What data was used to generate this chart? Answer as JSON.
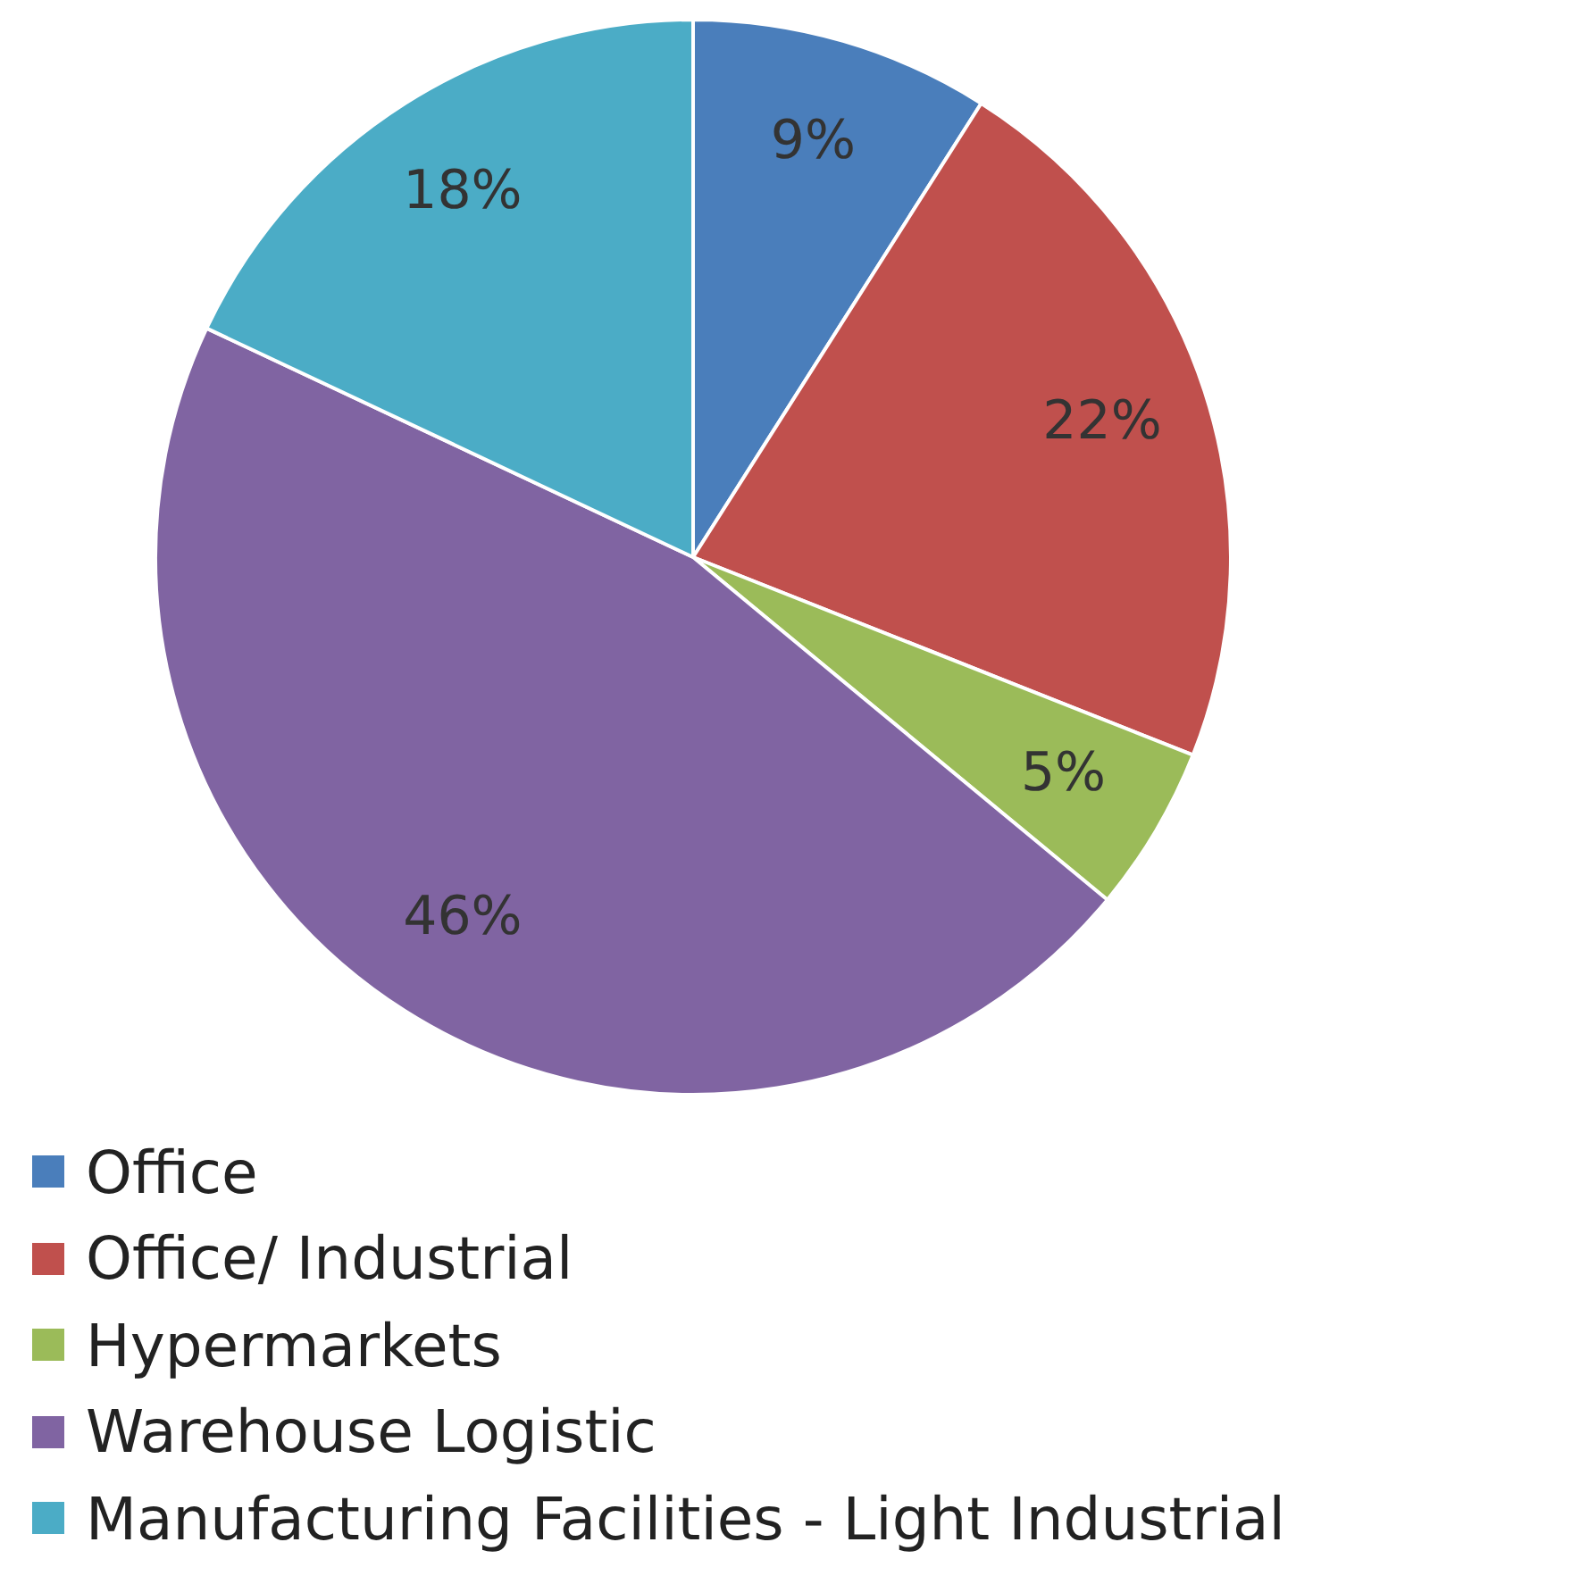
{
  "chart_data": {
    "type": "pie",
    "categories": [
      "Office",
      "Office/ Industrial",
      "Hypermarkets",
      "Warehouse Logistic",
      "Manufacturing Facilities - Light Industrial"
    ],
    "values": [
      9,
      22,
      5,
      46,
      18
    ],
    "colors": [
      "#4a7ebb",
      "#c0504d",
      "#9bbb59",
      "#8064a2",
      "#4bacc6"
    ],
    "value_labels": [
      "9%",
      "22%",
      "5%",
      "46%",
      "18%"
    ],
    "legend": "bottom"
  }
}
